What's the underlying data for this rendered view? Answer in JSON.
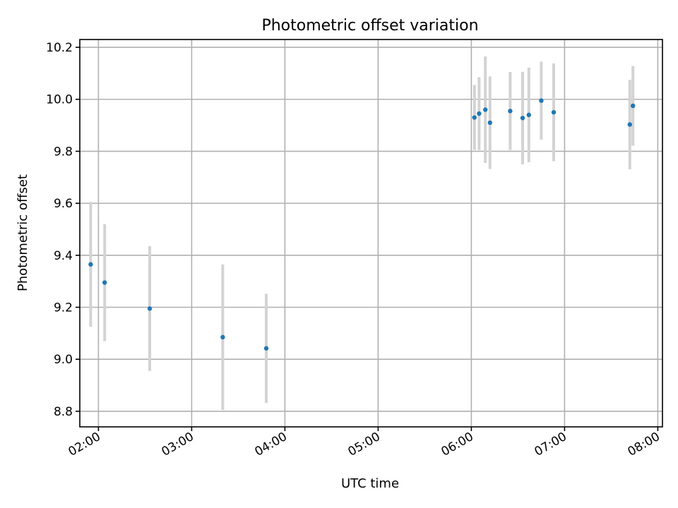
{
  "chart_data": {
    "type": "scatter",
    "title": "Photometric offset variation",
    "xlabel": "UTC time",
    "ylabel": "Photometric offset",
    "x_ticks": [
      "02:00",
      "03:00",
      "04:00",
      "05:00",
      "06:00",
      "07:00",
      "08:00"
    ],
    "y_ticks": [
      "8.8",
      "9.0",
      "9.2",
      "9.4",
      "9.6",
      "9.8",
      "10.0",
      "10.2"
    ],
    "xlim": [
      "01:48",
      "08:03"
    ],
    "ylim": [
      8.74,
      10.23
    ],
    "grid": true,
    "marker_color": "#1f77b4",
    "errorbar_color": "#d3d3d3",
    "points": [
      {
        "time": "01:55",
        "y": 9.365,
        "yerr": 0.24
      },
      {
        "time": "02:04",
        "y": 9.295,
        "yerr": 0.225
      },
      {
        "time": "02:33",
        "y": 9.195,
        "yerr": 0.24
      },
      {
        "time": "03:20",
        "y": 9.085,
        "yerr": 0.28
      },
      {
        "time": "03:48",
        "y": 9.042,
        "yerr": 0.21
      },
      {
        "time": "06:02",
        "y": 9.93,
        "yerr": 0.125
      },
      {
        "time": "06:05",
        "y": 9.945,
        "yerr": 0.14
      },
      {
        "time": "06:09",
        "y": 9.96,
        "yerr": 0.205
      },
      {
        "time": "06:12",
        "y": 9.91,
        "yerr": 0.178
      },
      {
        "time": "06:25",
        "y": 9.955,
        "yerr": 0.15
      },
      {
        "time": "06:33",
        "y": 9.928,
        "yerr": 0.178
      },
      {
        "time": "06:37",
        "y": 9.94,
        "yerr": 0.182
      },
      {
        "time": "06:45",
        "y": 9.995,
        "yerr": 0.15
      },
      {
        "time": "06:53",
        "y": 9.95,
        "yerr": 0.188
      },
      {
        "time": "07:42",
        "y": 9.903,
        "yerr": 0.172
      },
      {
        "time": "07:44",
        "y": 9.975,
        "yerr": 0.153
      }
    ]
  }
}
